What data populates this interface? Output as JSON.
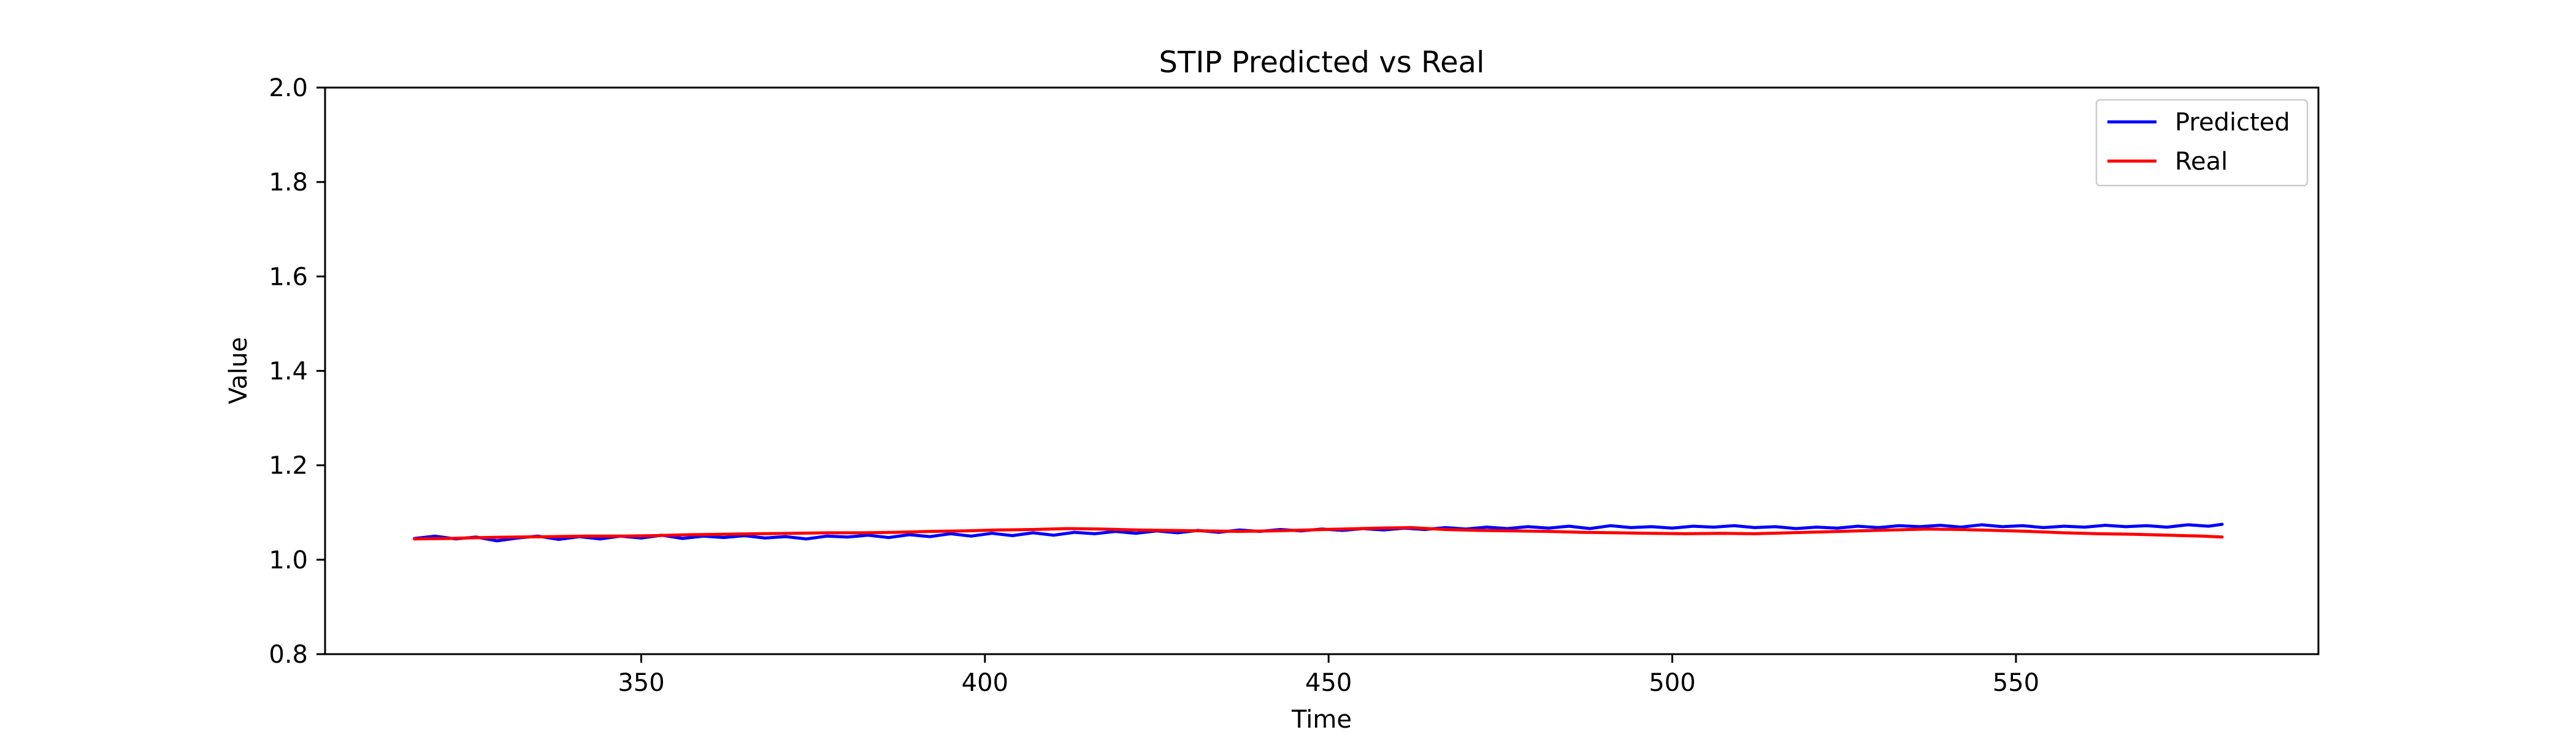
{
  "chart_data": {
    "type": "line",
    "title": "STIP Predicted vs Real",
    "xlabel": "Time",
    "ylabel": "Value",
    "xlim": [
      304,
      594
    ],
    "ylim": [
      0.8,
      2.0
    ],
    "xticks": [
      350,
      400,
      450,
      500,
      550
    ],
    "yticks": [
      0.8,
      1.0,
      1.2,
      1.4,
      1.6,
      1.8,
      2.0
    ],
    "xtick_labels": [
      "350",
      "400",
      "450",
      "500",
      "550"
    ],
    "ytick_labels": [
      "0.8",
      "1.0",
      "1.2",
      "1.4",
      "1.6",
      "1.8",
      "2.0"
    ],
    "grid": false,
    "legend": {
      "position": "top-right",
      "entries": [
        "Predicted",
        "Real"
      ]
    },
    "series": [
      {
        "name": "Predicted",
        "color": "#0000ff",
        "x": [
          317,
          320,
          323,
          326,
          329,
          332,
          335,
          338,
          341,
          344,
          347,
          350,
          353,
          356,
          359,
          362,
          365,
          368,
          371,
          374,
          377,
          380,
          383,
          386,
          389,
          392,
          395,
          398,
          401,
          404,
          407,
          410,
          413,
          416,
          419,
          422,
          425,
          428,
          431,
          434,
          437,
          440,
          443,
          446,
          449,
          452,
          455,
          458,
          461,
          464,
          467,
          470,
          473,
          476,
          479,
          482,
          485,
          488,
          491,
          494,
          497,
          500,
          503,
          506,
          509,
          512,
          515,
          518,
          521,
          524,
          527,
          530,
          533,
          536,
          539,
          542,
          545,
          548,
          551,
          554,
          557,
          560,
          563,
          566,
          569,
          572,
          575,
          578,
          580
        ],
        "values": [
          1.045,
          1.05,
          1.044,
          1.048,
          1.04,
          1.046,
          1.05,
          1.043,
          1.049,
          1.044,
          1.05,
          1.046,
          1.052,
          1.045,
          1.05,
          1.047,
          1.051,
          1.046,
          1.049,
          1.044,
          1.05,
          1.048,
          1.052,
          1.047,
          1.053,
          1.049,
          1.055,
          1.05,
          1.056,
          1.051,
          1.057,
          1.052,
          1.058,
          1.055,
          1.06,
          1.056,
          1.061,
          1.057,
          1.062,
          1.058,
          1.063,
          1.06,
          1.064,
          1.061,
          1.065,
          1.062,
          1.066,
          1.063,
          1.067,
          1.064,
          1.068,
          1.065,
          1.069,
          1.066,
          1.07,
          1.067,
          1.071,
          1.066,
          1.072,
          1.068,
          1.07,
          1.067,
          1.071,
          1.069,
          1.072,
          1.068,
          1.07,
          1.066,
          1.069,
          1.067,
          1.071,
          1.068,
          1.072,
          1.07,
          1.073,
          1.069,
          1.074,
          1.07,
          1.072,
          1.068,
          1.071,
          1.069,
          1.073,
          1.07,
          1.072,
          1.069,
          1.074,
          1.071,
          1.075
        ]
      },
      {
        "name": "Real",
        "color": "#ff0000",
        "x": [
          317,
          322,
          327,
          332,
          337,
          342,
          347,
          352,
          357,
          362,
          367,
          372,
          377,
          382,
          387,
          392,
          397,
          402,
          407,
          412,
          417,
          422,
          427,
          432,
          437,
          442,
          447,
          452,
          457,
          462,
          467,
          472,
          477,
          482,
          487,
          492,
          497,
          502,
          507,
          512,
          517,
          522,
          527,
          532,
          537,
          542,
          547,
          552,
          557,
          562,
          567,
          572,
          577,
          580
        ],
        "values": [
          1.044,
          1.045,
          1.047,
          1.048,
          1.049,
          1.05,
          1.05,
          1.051,
          1.053,
          1.054,
          1.055,
          1.056,
          1.057,
          1.057,
          1.058,
          1.06,
          1.061,
          1.063,
          1.064,
          1.066,
          1.065,
          1.063,
          1.062,
          1.061,
          1.06,
          1.061,
          1.063,
          1.065,
          1.067,
          1.068,
          1.064,
          1.062,
          1.061,
          1.06,
          1.058,
          1.057,
          1.056,
          1.055,
          1.056,
          1.055,
          1.057,
          1.059,
          1.061,
          1.063,
          1.065,
          1.064,
          1.062,
          1.06,
          1.057,
          1.055,
          1.054,
          1.052,
          1.05,
          1.048
        ]
      }
    ]
  }
}
